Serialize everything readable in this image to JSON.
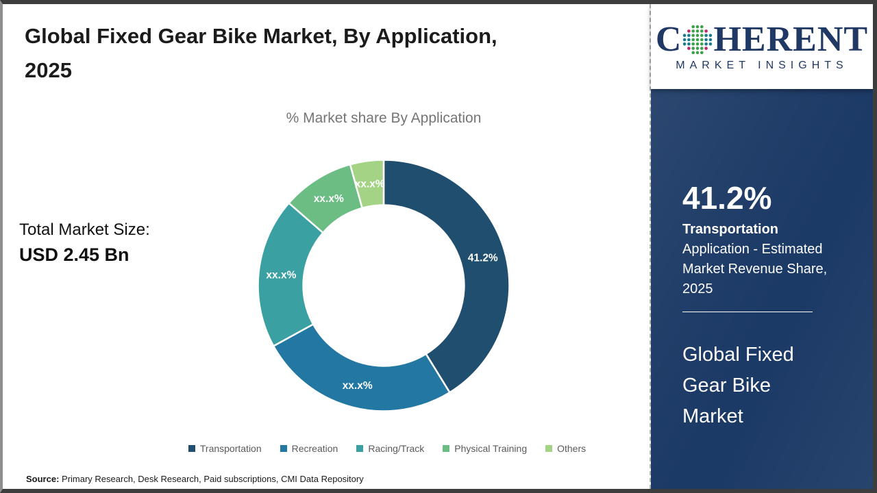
{
  "page": {
    "title_line1": "Global Fixed Gear Bike Market, By Application,",
    "title_line2": "2025",
    "total_label": "Total Market Size:",
    "total_value": "USD 2.45 Bn",
    "source_prefix": "Source:",
    "source_text": " Primary Research, Desk Research, Paid subscriptions, CMI Data Repository"
  },
  "chart_data": {
    "type": "pie",
    "title": "% Market share By Application",
    "donut": true,
    "inner_radius_ratio": 0.64,
    "start_angle_deg": 0,
    "direction": "clockwise",
    "legend_position": "bottom",
    "segments": [
      {
        "name": "Transportation",
        "value": 41.2,
        "label": "41.2%",
        "color": "#1f4e6e"
      },
      {
        "name": "Recreation",
        "value": 25.8,
        "label": "xx.x%",
        "color": "#2278a3"
      },
      {
        "name": "Racing/Track",
        "value": 19.4,
        "label": "xx.x%",
        "color": "#3ba0a1"
      },
      {
        "name": "Physical Training",
        "value": 9.3,
        "label": "xx.x%",
        "color": "#6cbd84"
      },
      {
        "name": "Others",
        "value": 4.3,
        "label": "xx.x%",
        "color": "#a5d385"
      }
    ]
  },
  "sidebar": {
    "logo": {
      "part1": "C",
      "part2": "HERENT",
      "subtext": "MARKET INSIGHTS"
    },
    "stat_value": "41.2%",
    "stat_label_bold": "Transportation",
    "stat_label_rest": "Application - Estimated Market Revenue Share, 2025",
    "report_title": "Global Fixed Gear Bike Market"
  },
  "colors": {
    "sidebar_navy": "#1c3a66",
    "logo_navy": "#1f3864",
    "globe_teal": "#1b7b8e",
    "globe_green": "#3da04a",
    "globe_magenta": "#bf2369",
    "subtitle_gray": "#757575",
    "legend_text_gray": "#5a5a5a"
  }
}
